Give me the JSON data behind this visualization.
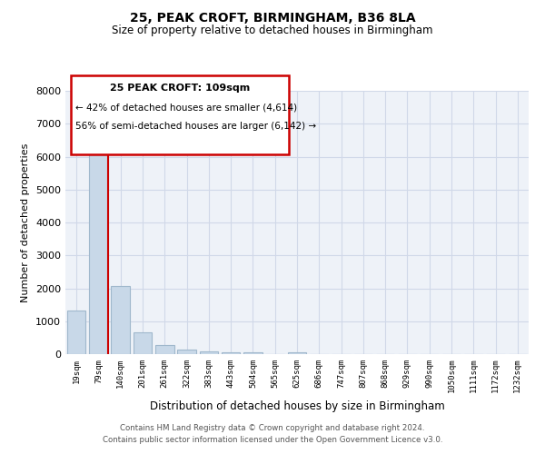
{
  "title1": "25, PEAK CROFT, BIRMINGHAM, B36 8LA",
  "title2": "Size of property relative to detached houses in Birmingham",
  "xlabel": "Distribution of detached houses by size in Birmingham",
  "ylabel": "Number of detached properties",
  "categories": [
    "19sqm",
    "79sqm",
    "140sqm",
    "201sqm",
    "261sqm",
    "322sqm",
    "383sqm",
    "443sqm",
    "504sqm",
    "565sqm",
    "625sqm",
    "686sqm",
    "747sqm",
    "807sqm",
    "868sqm",
    "929sqm",
    "990sqm",
    "1050sqm",
    "1111sqm",
    "1172sqm",
    "1232sqm"
  ],
  "values": [
    1320,
    6480,
    2060,
    660,
    280,
    140,
    95,
    60,
    55,
    0,
    60,
    0,
    0,
    0,
    0,
    0,
    0,
    0,
    0,
    0,
    0
  ],
  "bar_color": "#c8d8e8",
  "bar_edge_color": "#a0b8cc",
  "grid_color": "#d0d8e8",
  "background_color": "#eef2f8",
  "annotation_box_color": "#cc0000",
  "property_line_color": "#cc0000",
  "annotation_title": "25 PEAK CROFT: 109sqm",
  "annotation_line1": "← 42% of detached houses are smaller (4,614)",
  "annotation_line2": "56% of semi-detached houses are larger (6,142) →",
  "footnote1": "Contains HM Land Registry data © Crown copyright and database right 2024.",
  "footnote2": "Contains public sector information licensed under the Open Government Licence v3.0.",
  "ylim": [
    0,
    8000
  ],
  "yticks": [
    0,
    1000,
    2000,
    3000,
    4000,
    5000,
    6000,
    7000,
    8000
  ],
  "property_line_x": 1.42
}
